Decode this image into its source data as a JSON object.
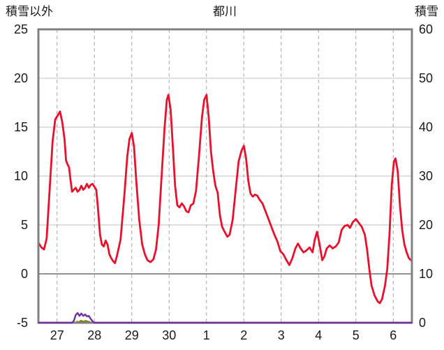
{
  "chart_data": {
    "type": "line",
    "title": "都川",
    "left_axis_title": "積雪以外",
    "right_axis_title": "積雪",
    "left_axis": {
      "min": -5,
      "max": 25,
      "ticks": [
        25,
        20,
        15,
        10,
        5,
        0,
        -5
      ],
      "tick_labels": [
        "25",
        "20",
        "15",
        "10",
        "5",
        "0",
        "-5"
      ]
    },
    "right_axis": {
      "min": 0,
      "max": 60,
      "ticks": [
        60,
        50,
        40,
        30,
        20,
        10,
        0
      ],
      "tick_labels": [
        "60",
        "50",
        "40",
        "30",
        "20",
        "10",
        "0"
      ]
    },
    "x_axis": {
      "min": 0,
      "max": 10,
      "tick_positions": [
        0.5,
        1.5,
        2.5,
        3.5,
        4.5,
        5.5,
        6.5,
        7.5,
        8.5,
        9.5
      ],
      "tick_labels": [
        "27",
        "28",
        "29",
        "30",
        "1",
        "2",
        "3",
        "4",
        "5",
        "6"
      ]
    },
    "grid": {
      "vertical": "dashed",
      "horizontal": "solid"
    },
    "colors": {
      "red_line": "#e8112d",
      "purple_line": "#7030a0",
      "olive_area": "#7f7f00",
      "grid_v": "#a6a6a6",
      "grid_h": "#bfbfbf",
      "zero_line": "#262626",
      "frame": "#808080",
      "label": "#1a1a1a"
    },
    "series": [
      {
        "name": "red",
        "axis": "left",
        "points": [
          [
            0,
            3.2
          ],
          [
            0.08,
            2.7
          ],
          [
            0.15,
            2.5
          ],
          [
            0.22,
            3.6
          ],
          [
            0.3,
            8.5
          ],
          [
            0.38,
            13.5
          ],
          [
            0.45,
            15.8
          ],
          [
            0.52,
            16.2
          ],
          [
            0.58,
            16.6
          ],
          [
            0.64,
            15.5
          ],
          [
            0.7,
            13.8
          ],
          [
            0.74,
            11.6
          ],
          [
            0.78,
            11.2
          ],
          [
            0.82,
            10.9
          ],
          [
            0.86,
            9.6
          ],
          [
            0.9,
            8.4
          ],
          [
            0.95,
            8.6
          ],
          [
            1,
            8.8
          ],
          [
            1.05,
            8.4
          ],
          [
            1.1,
            8.6
          ],
          [
            1.15,
            9
          ],
          [
            1.2,
            8.6
          ],
          [
            1.25,
            8.8
          ],
          [
            1.3,
            9.2
          ],
          [
            1.35,
            8.8
          ],
          [
            1.4,
            9.1
          ],
          [
            1.45,
            9.2
          ],
          [
            1.5,
            8.9
          ],
          [
            1.55,
            8.6
          ],
          [
            1.6,
            6.5
          ],
          [
            1.65,
            4
          ],
          [
            1.7,
            3
          ],
          [
            1.75,
            2.8
          ],
          [
            1.8,
            3.4
          ],
          [
            1.85,
            3
          ],
          [
            1.9,
            2
          ],
          [
            1.95,
            1.6
          ],
          [
            2,
            1.3
          ],
          [
            2.05,
            1.1
          ],
          [
            2.1,
            1.8
          ],
          [
            2.2,
            3.5
          ],
          [
            2.3,
            8
          ],
          [
            2.38,
            12
          ],
          [
            2.44,
            13.8
          ],
          [
            2.5,
            14.4
          ],
          [
            2.56,
            13
          ],
          [
            2.62,
            9.5
          ],
          [
            2.7,
            5.5
          ],
          [
            2.78,
            3
          ],
          [
            2.85,
            2
          ],
          [
            2.92,
            1.4
          ],
          [
            3,
            1.2
          ],
          [
            3.08,
            1.5
          ],
          [
            3.15,
            2.5
          ],
          [
            3.22,
            5
          ],
          [
            3.3,
            10
          ],
          [
            3.38,
            15
          ],
          [
            3.44,
            17.8
          ],
          [
            3.48,
            18.3
          ],
          [
            3.54,
            16.8
          ],
          [
            3.6,
            13
          ],
          [
            3.66,
            9
          ],
          [
            3.72,
            7
          ],
          [
            3.78,
            6.8
          ],
          [
            3.84,
            7.2
          ],
          [
            3.9,
            6.9
          ],
          [
            3.96,
            6.4
          ],
          [
            4.02,
            6.3
          ],
          [
            4.08,
            7
          ],
          [
            4.15,
            7.2
          ],
          [
            4.22,
            8.5
          ],
          [
            4.3,
            12
          ],
          [
            4.38,
            16
          ],
          [
            4.44,
            17.8
          ],
          [
            4.5,
            18.3
          ],
          [
            4.56,
            16
          ],
          [
            4.62,
            12.5
          ],
          [
            4.68,
            10.5
          ],
          [
            4.74,
            9
          ],
          [
            4.8,
            8.3
          ],
          [
            4.86,
            6
          ],
          [
            4.92,
            4.8
          ],
          [
            5,
            4.2
          ],
          [
            5.06,
            3.8
          ],
          [
            5.12,
            4
          ],
          [
            5.2,
            5.5
          ],
          [
            5.28,
            8.5
          ],
          [
            5.36,
            11.5
          ],
          [
            5.44,
            12.6
          ],
          [
            5.5,
            13.1
          ],
          [
            5.56,
            11.8
          ],
          [
            5.62,
            9.5
          ],
          [
            5.68,
            8.2
          ],
          [
            5.74,
            7.9
          ],
          [
            5.8,
            8.1
          ],
          [
            5.86,
            8
          ],
          [
            5.92,
            7.6
          ],
          [
            6,
            7.2
          ],
          [
            6.08,
            6.4
          ],
          [
            6.16,
            5.6
          ],
          [
            6.24,
            4.8
          ],
          [
            6.32,
            4
          ],
          [
            6.4,
            3.3
          ],
          [
            6.48,
            2.3
          ],
          [
            6.56,
            2
          ],
          [
            6.64,
            1.4
          ],
          [
            6.72,
            0.9
          ],
          [
            6.8,
            1.6
          ],
          [
            6.88,
            2.6
          ],
          [
            6.95,
            3.1
          ],
          [
            7.02,
            2.6
          ],
          [
            7.1,
            2.2
          ],
          [
            7.18,
            2.4
          ],
          [
            7.26,
            2.7
          ],
          [
            7.34,
            2.2
          ],
          [
            7.4,
            3.5
          ],
          [
            7.46,
            4.3
          ],
          [
            7.52,
            3.2
          ],
          [
            7.6,
            1.4
          ],
          [
            7.66,
            1.8
          ],
          [
            7.72,
            2.6
          ],
          [
            7.8,
            2.9
          ],
          [
            7.88,
            2.6
          ],
          [
            7.96,
            2.8
          ],
          [
            8.04,
            3.2
          ],
          [
            8.12,
            4.5
          ],
          [
            8.2,
            4.9
          ],
          [
            8.28,
            5
          ],
          [
            8.34,
            4.7
          ],
          [
            8.42,
            5.3
          ],
          [
            8.5,
            5.6
          ],
          [
            8.58,
            5.2
          ],
          [
            8.66,
            4.8
          ],
          [
            8.74,
            4
          ],
          [
            8.8,
            2.5
          ],
          [
            8.86,
            0.5
          ],
          [
            8.92,
            -1.2
          ],
          [
            9,
            -2.2
          ],
          [
            9.08,
            -2.8
          ],
          [
            9.14,
            -3
          ],
          [
            9.2,
            -2.6
          ],
          [
            9.28,
            -1.2
          ],
          [
            9.34,
            0.5
          ],
          [
            9.4,
            4
          ],
          [
            9.46,
            9
          ],
          [
            9.52,
            11.5
          ],
          [
            9.56,
            11.8
          ],
          [
            9.62,
            10.5
          ],
          [
            9.68,
            7
          ],
          [
            9.74,
            4.5
          ],
          [
            9.8,
            3
          ],
          [
            9.86,
            2.2
          ],
          [
            9.92,
            1.6
          ],
          [
            10,
            1.3
          ]
        ]
      },
      {
        "name": "purple",
        "axis": "left",
        "points": [
          [
            0,
            -5
          ],
          [
            0.9,
            -5
          ],
          [
            0.95,
            -4.8
          ],
          [
            1,
            -4.2
          ],
          [
            1.05,
            -4
          ],
          [
            1.1,
            -4.3
          ],
          [
            1.15,
            -4.05
          ],
          [
            1.2,
            -4.3
          ],
          [
            1.25,
            -4.15
          ],
          [
            1.3,
            -4.35
          ],
          [
            1.35,
            -4.3
          ],
          [
            1.4,
            -4.6
          ],
          [
            1.45,
            -4.85
          ],
          [
            1.5,
            -5
          ],
          [
            10,
            -5
          ]
        ]
      },
      {
        "name": "olive-area",
        "axis": "left",
        "area": true,
        "points": [
          [
            0.98,
            -5
          ],
          [
            1.02,
            -4.8
          ],
          [
            1.08,
            -4.85
          ],
          [
            1.14,
            -4.7
          ],
          [
            1.2,
            -4.8
          ],
          [
            1.26,
            -4.72
          ],
          [
            1.32,
            -4.78
          ],
          [
            1.38,
            -4.85
          ],
          [
            1.44,
            -4.95
          ],
          [
            1.48,
            -5
          ]
        ]
      }
    ]
  }
}
